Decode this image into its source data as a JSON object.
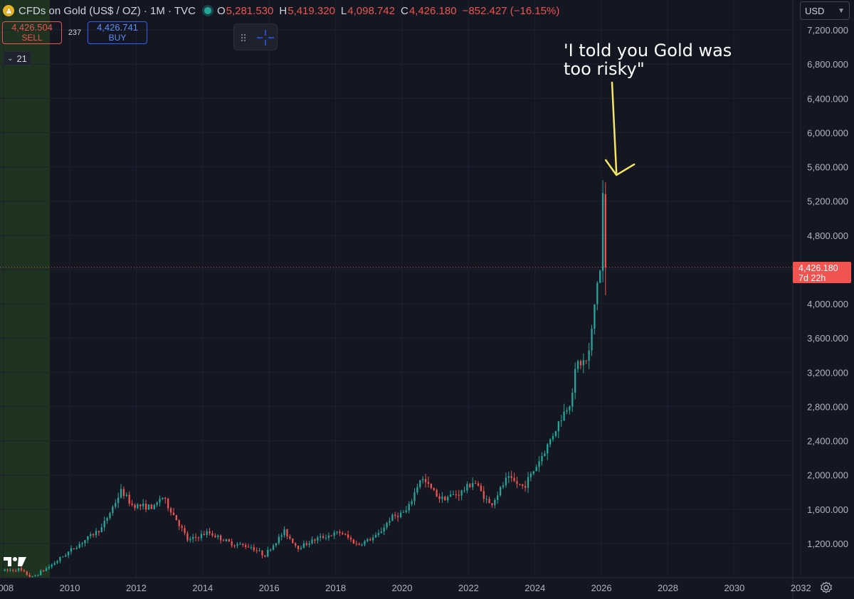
{
  "header": {
    "title": "CFDs on Gold (US$ / OZ) · 1M · TVC",
    "ohlc": [
      {
        "key": "O",
        "value": "5,281.530"
      },
      {
        "key": "H",
        "value": "5,419.320"
      },
      {
        "key": "L",
        "value": "4,098.742"
      },
      {
        "key": "C",
        "value": "4,426.180"
      }
    ],
    "change": "−852.427 (−16.15%)",
    "currency": "USD"
  },
  "trade": {
    "sell_price": "4,426.504",
    "sell_label": "SELL",
    "spread": "237",
    "buy_price": "4,426.741",
    "buy_label": "BUY"
  },
  "indicator_toggle": "21",
  "price_label": {
    "price": "4,426.180",
    "countdown": "7d 22h"
  },
  "annotation": "'I told you Gold was\ntoo risky\"",
  "colors": {
    "up": "#26a69a",
    "down": "#ef5350",
    "annotation_arrow": "#f5e663",
    "green_zone": "#1e3320"
  },
  "chart_data": {
    "type": "candlestick",
    "title": "CFDs on Gold (US$ / OZ) · 1M · TVC",
    "x_ticks": [
      "2008",
      "2010",
      "2012",
      "2014",
      "2016",
      "2018",
      "2020",
      "2022",
      "2024",
      "2026",
      "2028",
      "2030",
      "2032"
    ],
    "y_ticks": [
      "1,200.000",
      "1,600.000",
      "2,000.000",
      "2,400.000",
      "2,800.000",
      "3,200.000",
      "3,600.000",
      "4,000.000",
      "4,400.000",
      "4,800.000",
      "5,200.000",
      "5,600.000",
      "6,000.000",
      "6,400.000",
      "6,800.000",
      "7,200.000"
    ],
    "y_range": [
      800,
      7550
    ],
    "x_range": [
      2007.9,
      2033.6
    ],
    "last_close": 4426.18,
    "shaded_region_end_year": 2009.4,
    "annotation_arrow_target": {
      "year": 2026.45,
      "price": 5480
    },
    "series": [
      {
        "year": 2008.0,
        "price": 880
      },
      {
        "year": 2008.5,
        "price": 900
      },
      {
        "year": 2008.9,
        "price": 800
      },
      {
        "year": 2009.5,
        "price": 950
      },
      {
        "year": 2010.0,
        "price": 1100
      },
      {
        "year": 2010.5,
        "price": 1240
      },
      {
        "year": 2011.0,
        "price": 1380
      },
      {
        "year": 2011.6,
        "price": 1820
      },
      {
        "year": 2011.9,
        "price": 1650
      },
      {
        "year": 2012.6,
        "price": 1620
      },
      {
        "year": 2012.8,
        "price": 1760
      },
      {
        "year": 2013.3,
        "price": 1450
      },
      {
        "year": 2013.6,
        "price": 1230
      },
      {
        "year": 2014.2,
        "price": 1330
      },
      {
        "year": 2014.9,
        "price": 1200
      },
      {
        "year": 2015.5,
        "price": 1160
      },
      {
        "year": 2015.9,
        "price": 1060
      },
      {
        "year": 2016.5,
        "price": 1340
      },
      {
        "year": 2016.9,
        "price": 1150
      },
      {
        "year": 2017.5,
        "price": 1260
      },
      {
        "year": 2018.2,
        "price": 1330
      },
      {
        "year": 2018.7,
        "price": 1180
      },
      {
        "year": 2019.3,
        "price": 1290
      },
      {
        "year": 2019.7,
        "price": 1500
      },
      {
        "year": 2020.2,
        "price": 1580
      },
      {
        "year": 2020.6,
        "price": 1970
      },
      {
        "year": 2021.2,
        "price": 1720
      },
      {
        "year": 2021.8,
        "price": 1790
      },
      {
        "year": 2022.2,
        "price": 1930
      },
      {
        "year": 2022.7,
        "price": 1640
      },
      {
        "year": 2023.2,
        "price": 1960
      },
      {
        "year": 2023.7,
        "price": 1860
      },
      {
        "year": 2024.0,
        "price": 2050
      },
      {
        "year": 2024.4,
        "price": 2330
      },
      {
        "year": 2024.8,
        "price": 2650
      },
      {
        "year": 2025.1,
        "price": 2860
      },
      {
        "year": 2025.3,
        "price": 3300
      },
      {
        "year": 2025.6,
        "price": 3330
      },
      {
        "year": 2025.7,
        "price": 3480
      },
      {
        "year": 2025.8,
        "price": 3860
      },
      {
        "year": 2025.9,
        "price": 4240
      },
      {
        "year": 2026.0,
        "price": 4380
      },
      {
        "year": 2026.08,
        "price": 5281.53
      }
    ],
    "last_candle": {
      "open": 5281.53,
      "high": 5419.32,
      "low": 4098.742,
      "close": 4426.18
    }
  }
}
